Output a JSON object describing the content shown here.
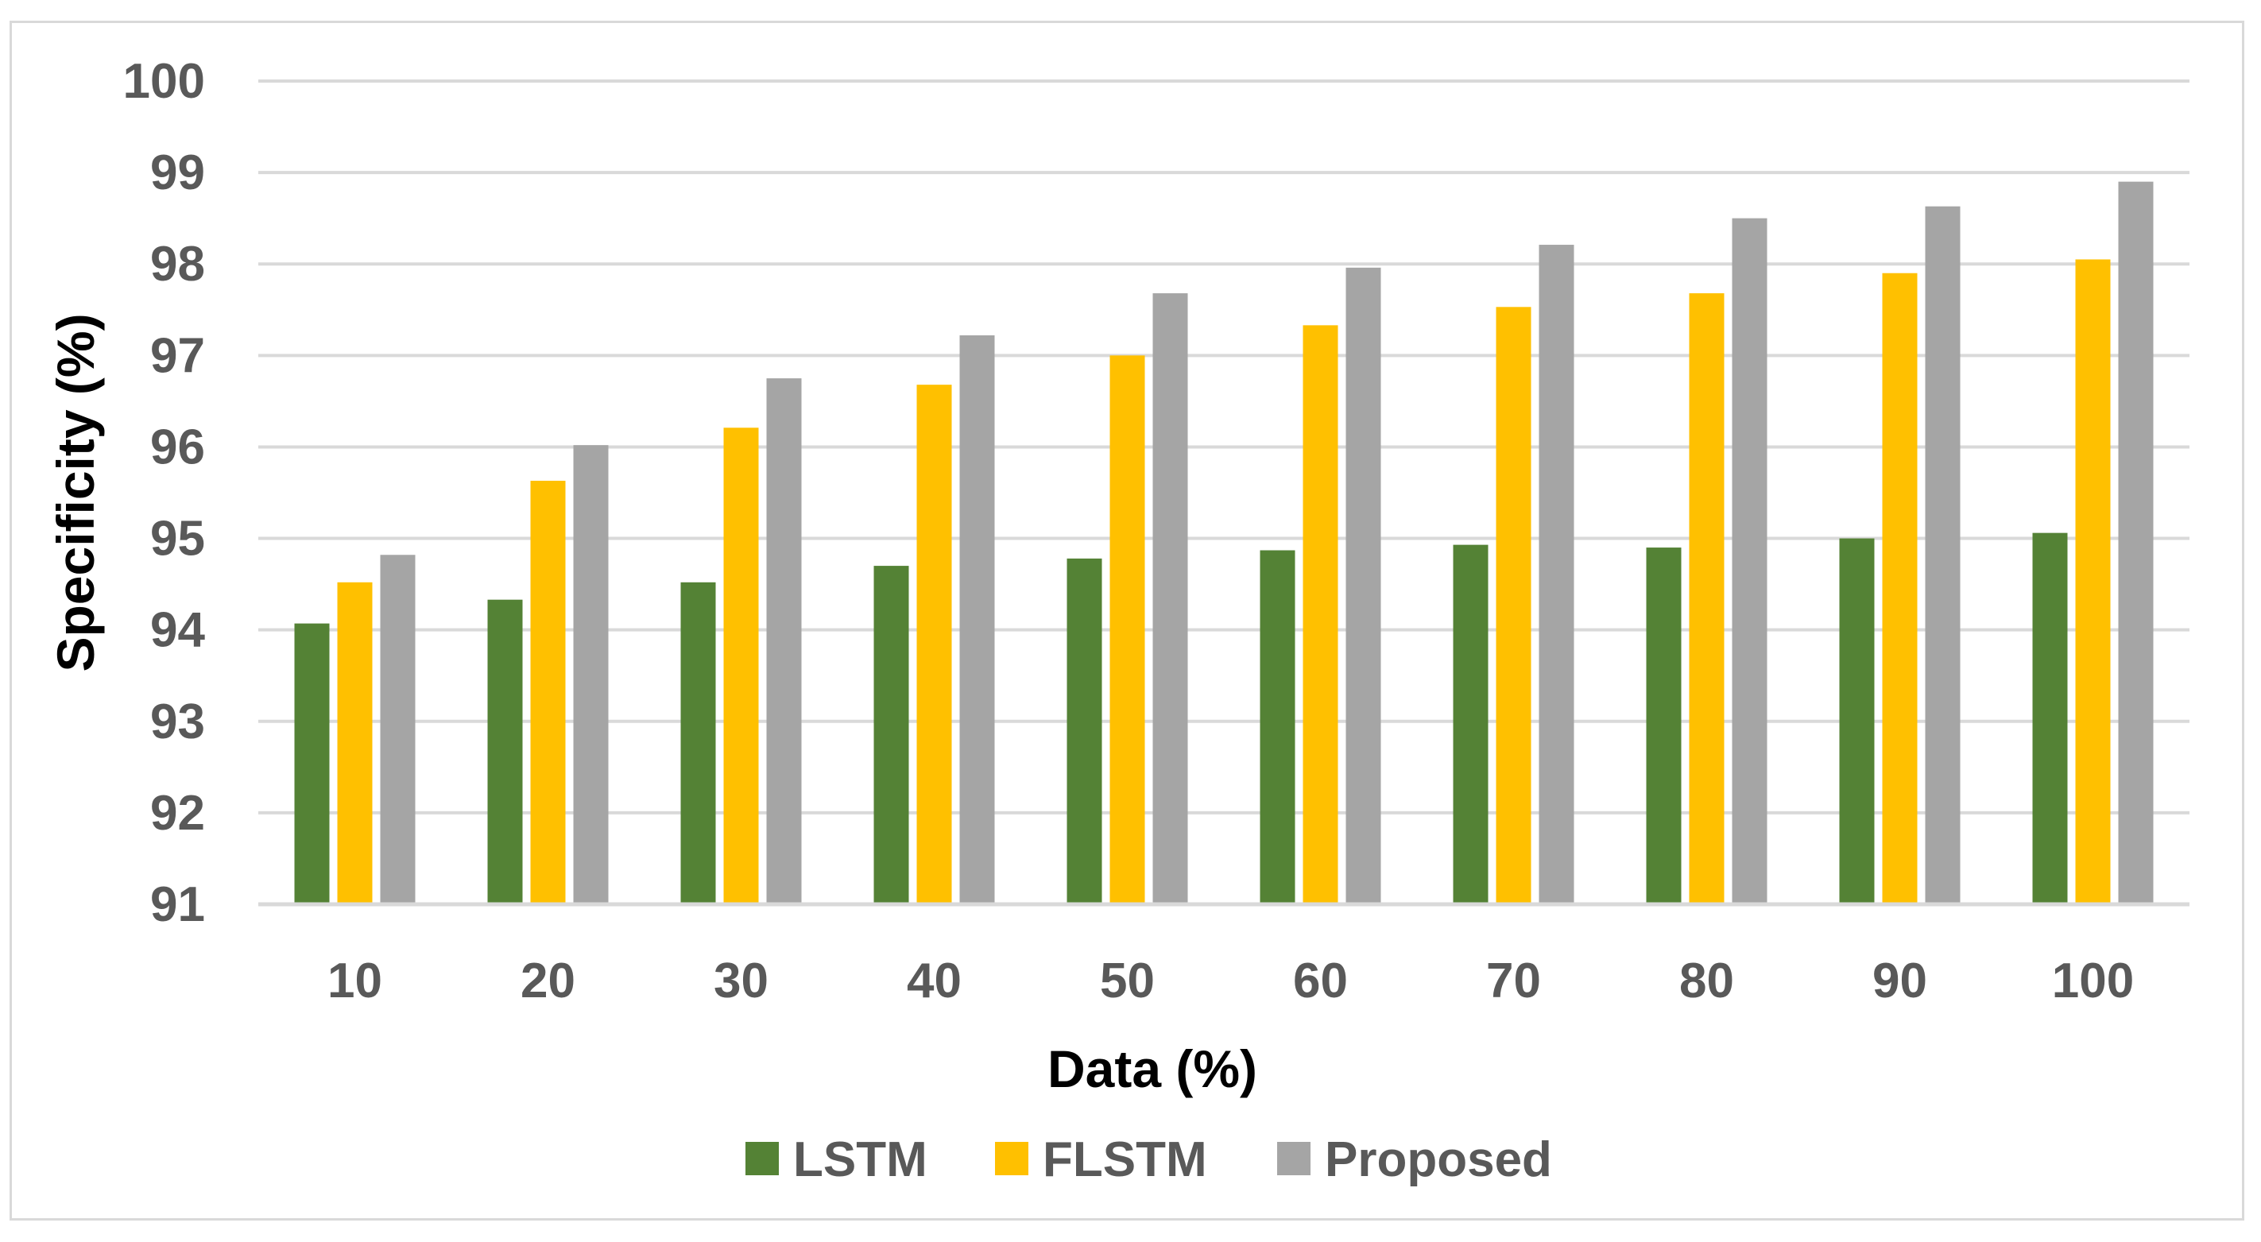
{
  "chart_data": {
    "type": "bar",
    "title": "",
    "xlabel": "Data (%)",
    "ylabel": "Specificity (%)",
    "categories": [
      "10",
      "20",
      "30",
      "40",
      "50",
      "60",
      "70",
      "80",
      "90",
      "100"
    ],
    "ylim": [
      91,
      100
    ],
    "yticks": [
      "91",
      "92",
      "93",
      "94",
      "95",
      "96",
      "97",
      "98",
      "99",
      "100"
    ],
    "grid": true,
    "legend_position": "bottom",
    "series": [
      {
        "name": "LSTM",
        "color": "#548235",
        "values": [
          94.07,
          94.33,
          94.52,
          94.7,
          94.78,
          94.87,
          94.93,
          94.9,
          95.0,
          95.06
        ]
      },
      {
        "name": "FLSTM",
        "color": "#ffc000",
        "values": [
          94.52,
          95.63,
          96.21,
          96.68,
          97.0,
          97.33,
          97.53,
          97.68,
          97.9,
          98.05
        ]
      },
      {
        "name": "Proposed",
        "color": "#a5a5a5",
        "values": [
          94.82,
          96.02,
          96.75,
          97.22,
          97.68,
          97.96,
          98.21,
          98.5,
          98.63,
          98.9
        ]
      }
    ]
  }
}
